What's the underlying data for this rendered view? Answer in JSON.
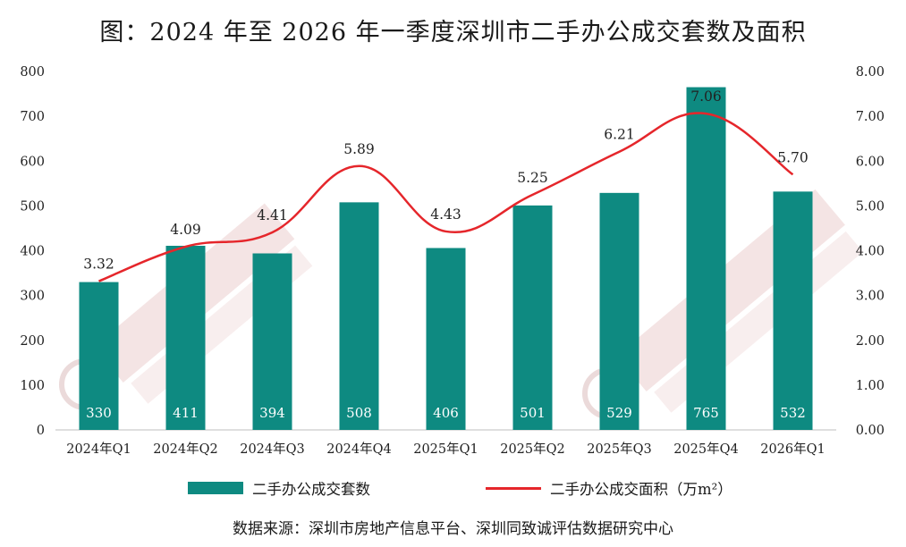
{
  "title": "图：2024 年至 2026 年一季度深圳市二手办公成交套数及面积",
  "source": "数据来源：深圳市房地产信息平台、深圳同致诚评估数据研究中心",
  "colors": {
    "bar": "#0e8a81",
    "line": "#e5262b",
    "watermark": "#f2d6d6"
  },
  "chart_data": {
    "type": "bar",
    "categories": [
      "2024年Q1",
      "2024年Q2",
      "2024年Q3",
      "2024年Q4",
      "2025年Q1",
      "2025年Q2",
      "2025年Q3",
      "2025年Q4",
      "2026年Q1"
    ],
    "series": [
      {
        "name": "二手办公成交套数",
        "type": "bar",
        "axis": "left",
        "values": [
          330,
          411,
          394,
          508,
          406,
          501,
          529,
          765,
          532
        ],
        "labels": [
          "330",
          "411",
          "394",
          "508",
          "406",
          "501",
          "529",
          "765",
          "532"
        ]
      },
      {
        "name": "二手办公成交面积（万m²）",
        "type": "line",
        "axis": "right",
        "values": [
          3.32,
          4.09,
          4.41,
          5.89,
          4.43,
          5.25,
          6.21,
          7.06,
          5.7
        ],
        "labels": [
          "3.32",
          "4.09",
          "4.41",
          "5.89",
          "4.43",
          "5.25",
          "6.21",
          "7.06",
          "5.70"
        ]
      }
    ],
    "ylim_left": [
      0,
      800
    ],
    "ylim_right": [
      0,
      8
    ],
    "yticks_left": [
      "0",
      "100",
      "200",
      "300",
      "400",
      "500",
      "600",
      "700",
      "800"
    ],
    "yticks_right": [
      "0.00",
      "1.00",
      "2.00",
      "3.00",
      "4.00",
      "5.00",
      "6.00",
      "7.00",
      "8.00"
    ],
    "legend": [
      "二手办公成交套数",
      "二手办公成交面积（万m²）"
    ]
  }
}
